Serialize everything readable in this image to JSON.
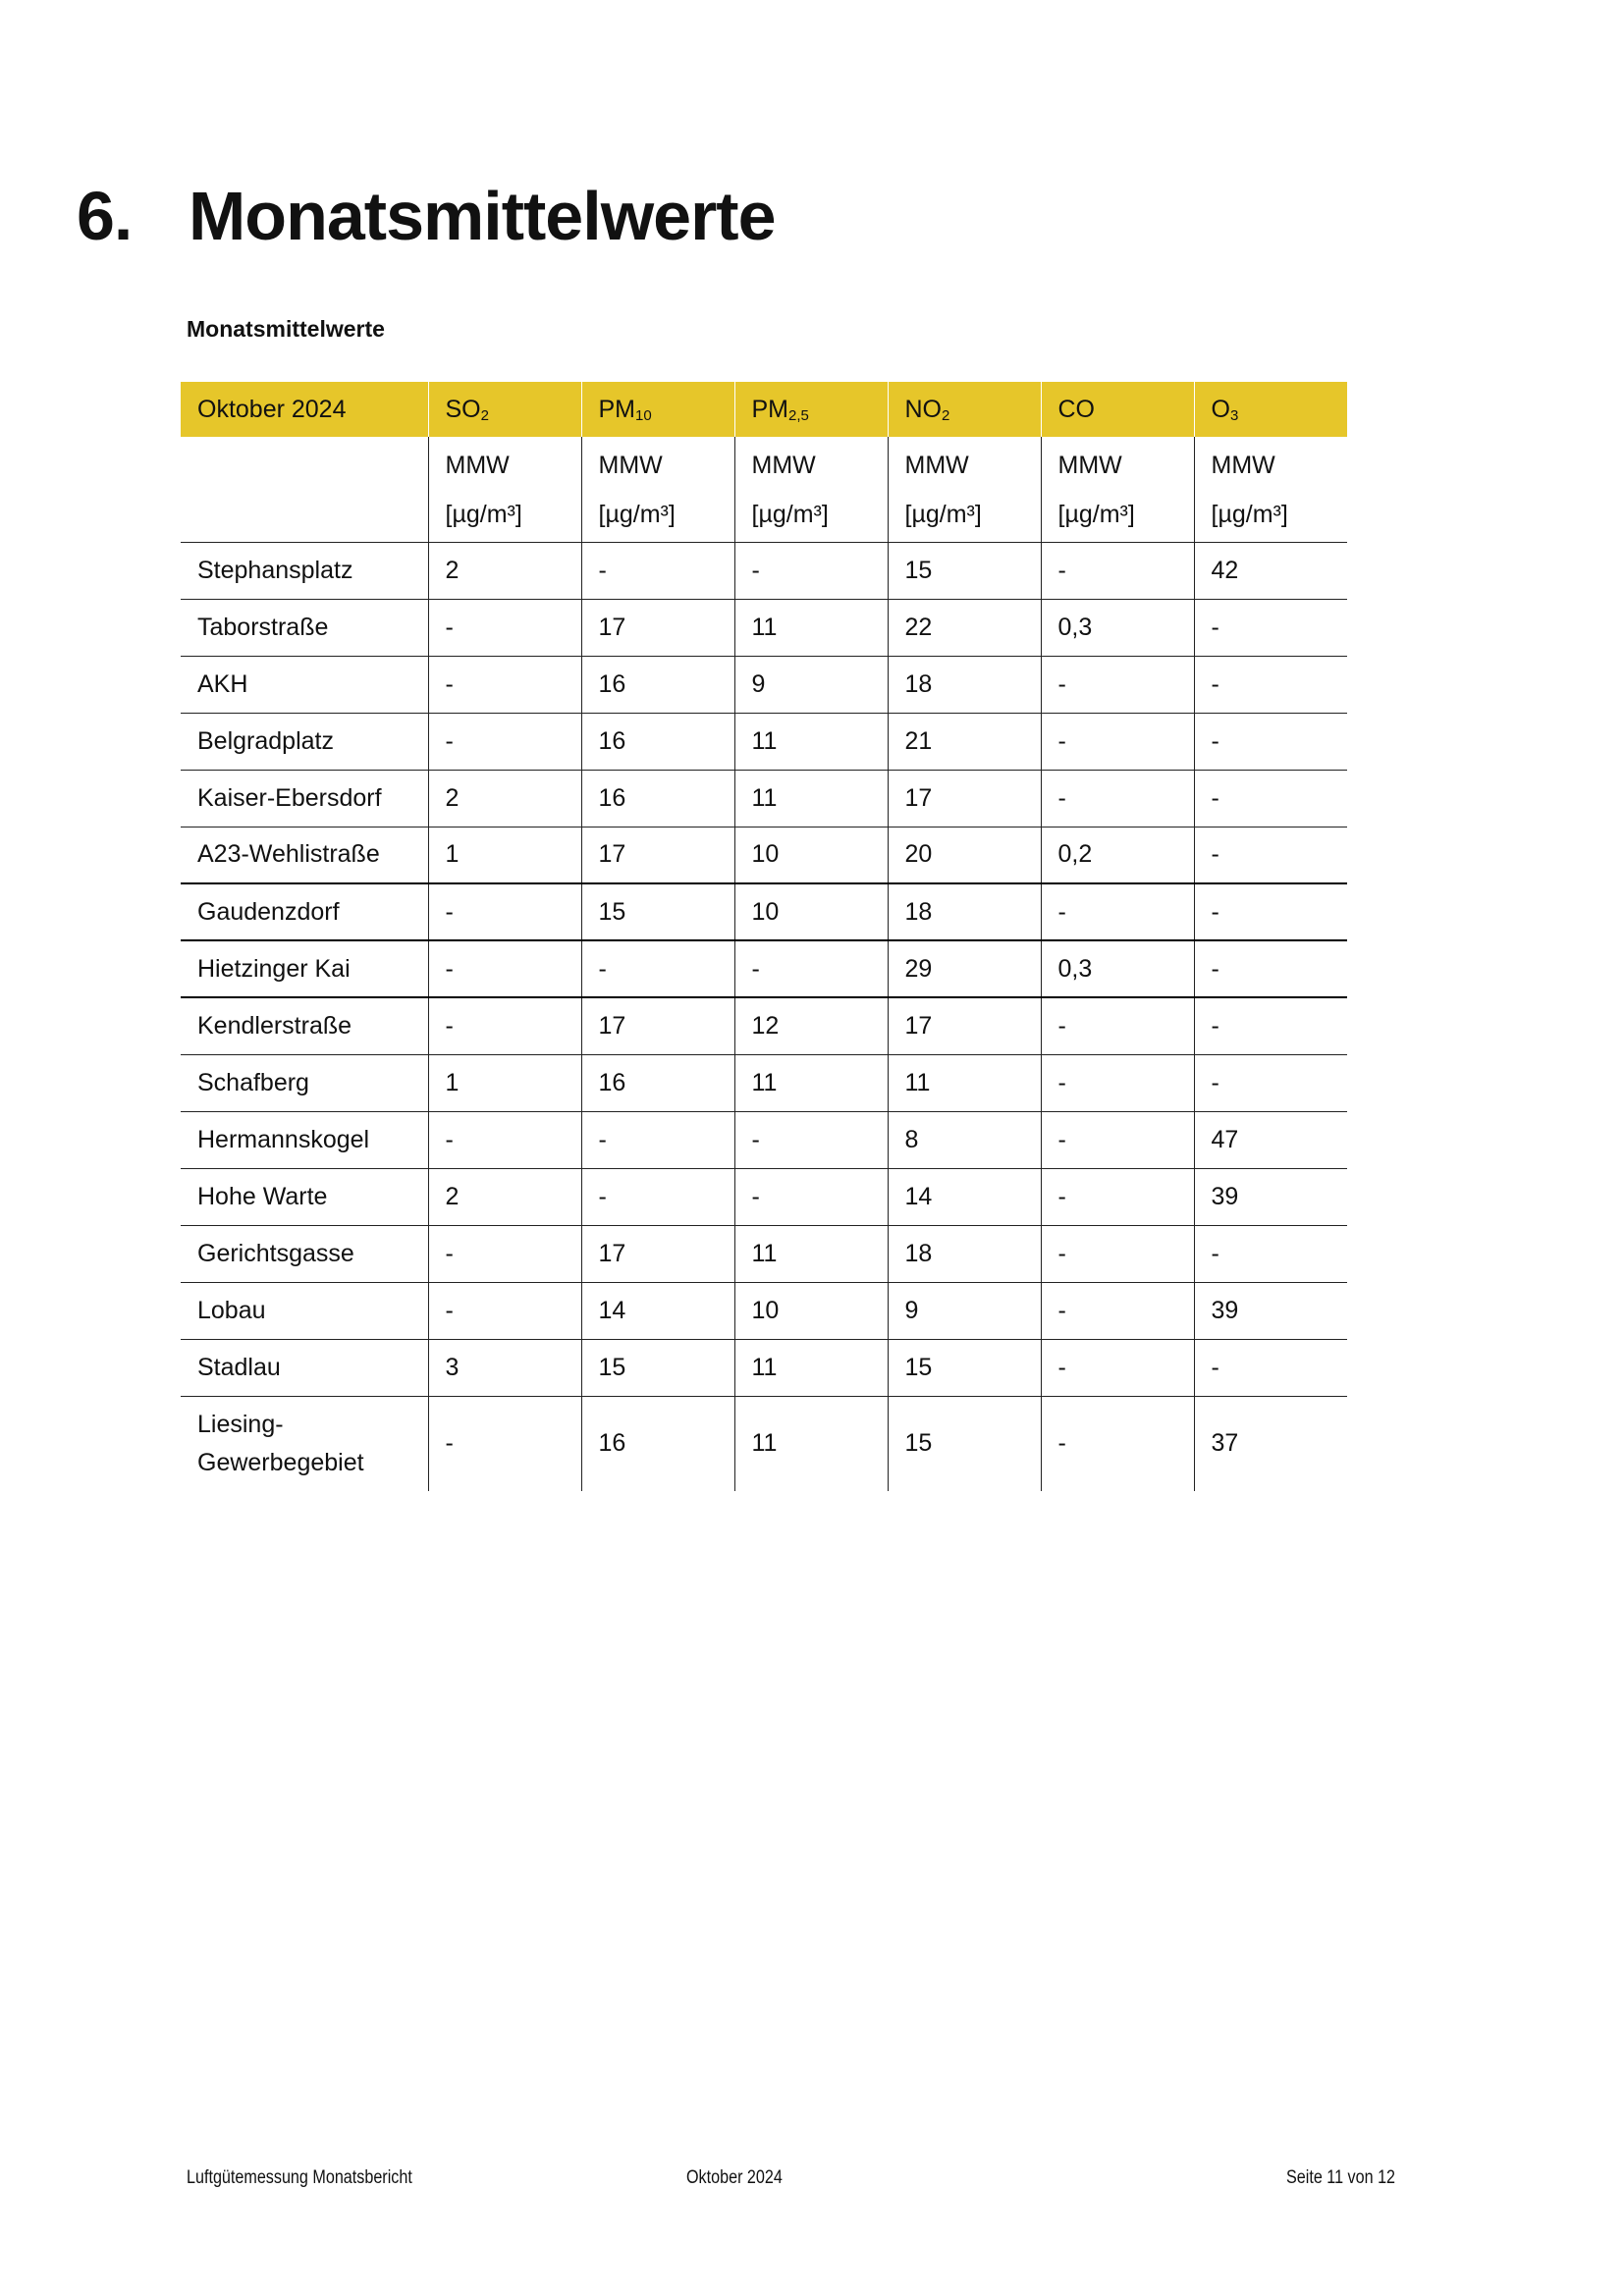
{
  "heading": {
    "number": "6.",
    "title": "Monatsmittelwerte"
  },
  "subtitle": "Monatsmittelwerte",
  "table": {
    "period": "Oktober 2024",
    "columns": [
      {
        "base": "SO",
        "sub": "2"
      },
      {
        "base": "PM",
        "sub": "10"
      },
      {
        "base": "PM",
        "sub": "2,5"
      },
      {
        "base": "NO",
        "sub": "2"
      },
      {
        "base": "CO",
        "sub": ""
      },
      {
        "base": "O",
        "sub": "3"
      }
    ],
    "metric": "MMW",
    "unit": "[µg/m³]",
    "rows": [
      {
        "station": "Stephansplatz",
        "values": [
          "2",
          "-",
          "-",
          "15",
          "-",
          "42"
        ]
      },
      {
        "station": "Taborstraße",
        "values": [
          "-",
          "17",
          "11",
          "22",
          "0,3",
          "-"
        ]
      },
      {
        "station": "AKH",
        "values": [
          "-",
          "16",
          "9",
          "18",
          "-",
          "-"
        ]
      },
      {
        "station": "Belgradplatz",
        "values": [
          "-",
          "16",
          "11",
          "21",
          "-",
          "-"
        ]
      },
      {
        "station": "Kaiser-Ebersdorf",
        "values": [
          "2",
          "16",
          "11",
          "17",
          "-",
          "-"
        ]
      },
      {
        "station": "A23-Wehlistraße",
        "values": [
          "1",
          "17",
          "10",
          "20",
          "0,2",
          "-"
        ]
      },
      {
        "station": "Gaudenzdorf",
        "values": [
          "-",
          "15",
          "10",
          "18",
          "-",
          "-"
        ]
      },
      {
        "station": "Hietzinger Kai",
        "values": [
          "-",
          "-",
          "-",
          "29",
          "0,3",
          "-"
        ]
      },
      {
        "station": "Kendlerstraße",
        "values": [
          "-",
          "17",
          "12",
          "17",
          "-",
          "-"
        ]
      },
      {
        "station": "Schafberg",
        "values": [
          "1",
          "16",
          "11",
          "11",
          "-",
          "-"
        ]
      },
      {
        "station": "Hermannskogel",
        "values": [
          "-",
          "-",
          "-",
          "8",
          "-",
          "47"
        ]
      },
      {
        "station": "Hohe Warte",
        "values": [
          "2",
          "-",
          "-",
          "14",
          "-",
          "39"
        ]
      },
      {
        "station": "Gerichtsgasse",
        "values": [
          "-",
          "17",
          "11",
          "18",
          "-",
          "-"
        ]
      },
      {
        "station": "Lobau",
        "values": [
          "-",
          "14",
          "10",
          "9",
          "-",
          "39"
        ]
      },
      {
        "station": "Stadlau",
        "values": [
          "3",
          "15",
          "11",
          "15",
          "-",
          "-"
        ]
      },
      {
        "station": "Liesing-Gewerbegebiet",
        "values": [
          "-",
          "16",
          "11",
          "15",
          "-",
          "37"
        ]
      }
    ]
  },
  "footer": {
    "left": "Luftgütemessung Monatsbericht",
    "center": "Oktober 2024",
    "right": "Seite 11 von 12"
  },
  "colors": {
    "header_bg": "#e6c62a"
  }
}
